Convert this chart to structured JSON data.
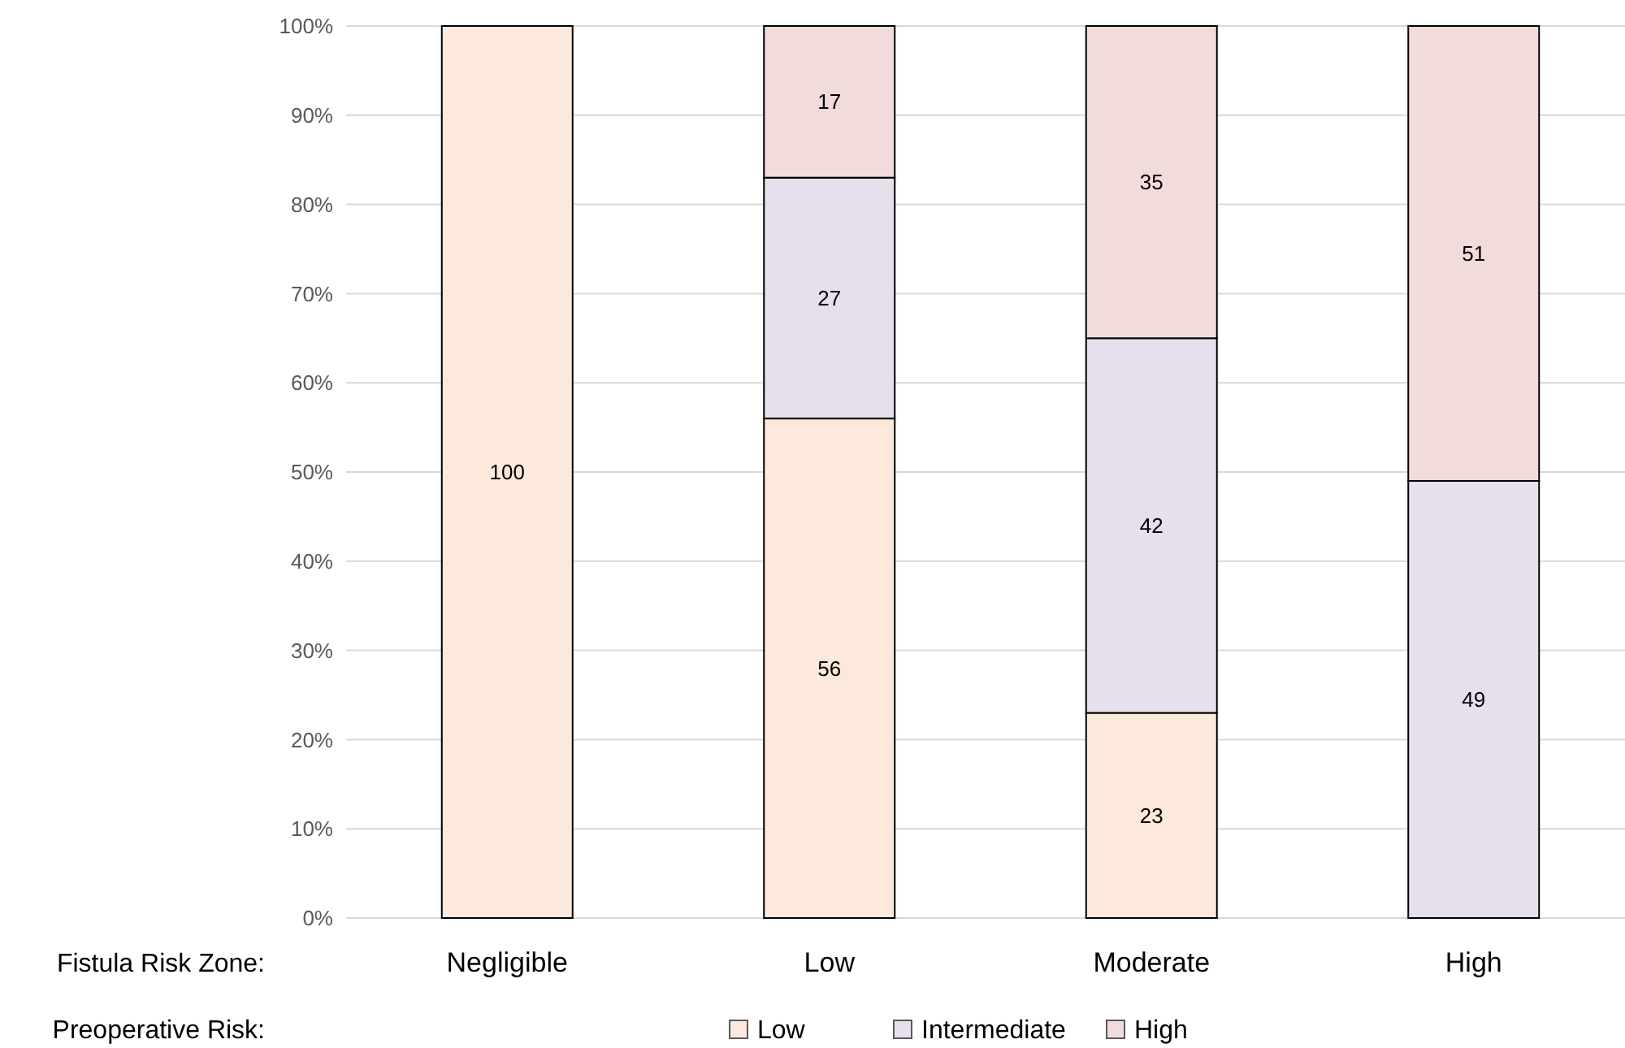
{
  "chart_data": {
    "type": "bar",
    "stacked": true,
    "categories": [
      "Negligible",
      "Low",
      "Moderate",
      "High"
    ],
    "xlabel": "Fistula Risk Zone:",
    "legend_title": "Preoperative Risk:",
    "series": [
      {
        "name": "Low",
        "color": "#fce9db",
        "values": [
          100,
          56,
          23,
          null
        ]
      },
      {
        "name": "Intermediate",
        "color": "#e6e0ec",
        "values": [
          null,
          27,
          42,
          49
        ]
      },
      {
        "name": "High",
        "color": "#f2dcdb",
        "values": [
          null,
          17,
          35,
          51
        ]
      }
    ],
    "ylim": [
      0,
      100
    ],
    "yticks": [
      {
        "value": 0,
        "label": "0%"
      },
      {
        "value": 10,
        "label": "10%"
      },
      {
        "value": 20,
        "label": "20%"
      },
      {
        "value": 30,
        "label": "30%"
      },
      {
        "value": 40,
        "label": "40%"
      },
      {
        "value": 50,
        "label": "50%"
      },
      {
        "value": 60,
        "label": "60%"
      },
      {
        "value": 70,
        "label": "70%"
      },
      {
        "value": 80,
        "label": "80%"
      },
      {
        "value": 90,
        "label": "90%"
      },
      {
        "value": 100,
        "label": "100%"
      }
    ],
    "grid": "y",
    "legend": "bottom",
    "data_labels": true
  }
}
